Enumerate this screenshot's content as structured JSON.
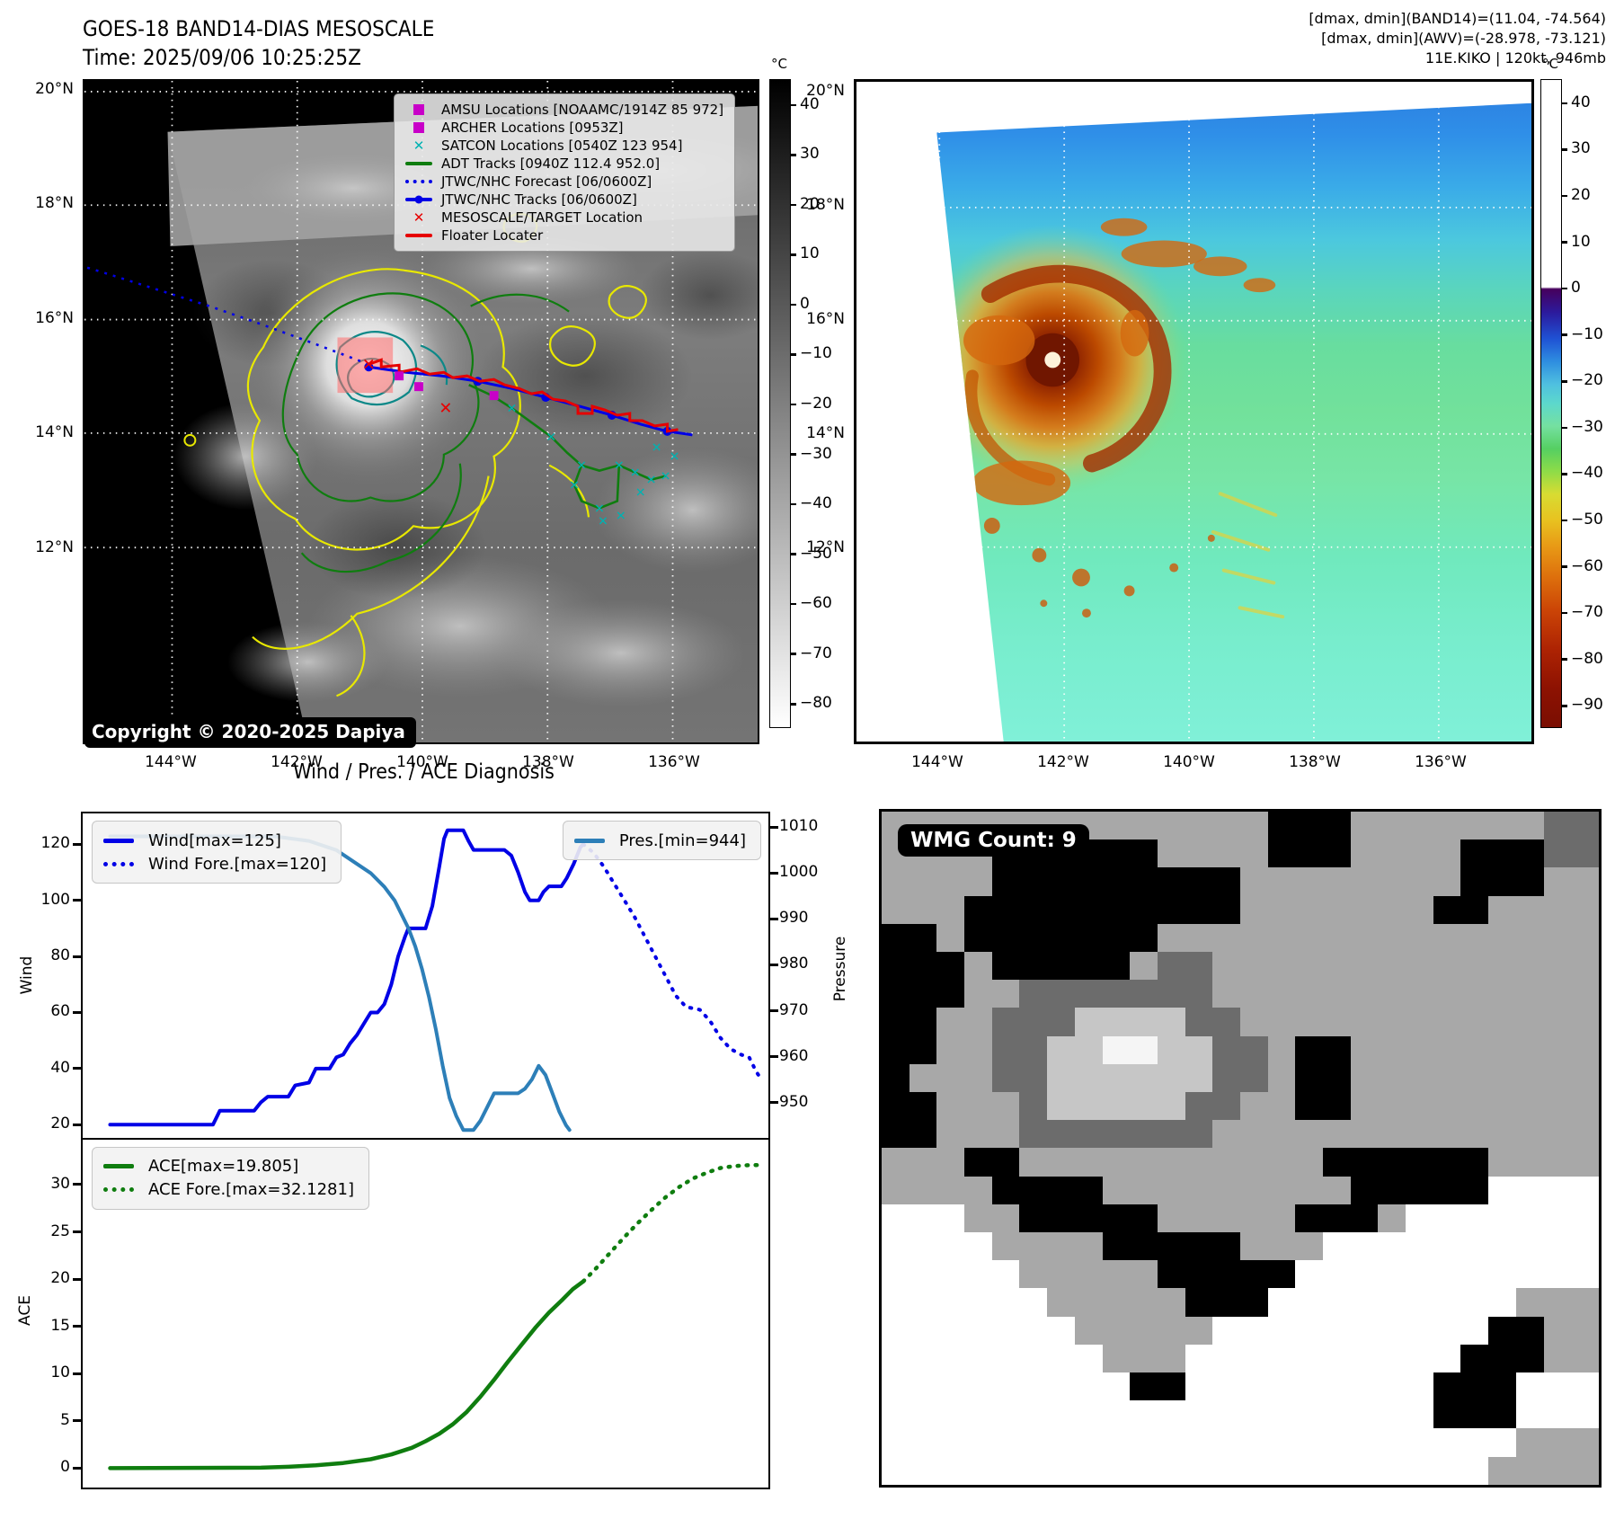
{
  "header": {
    "title_line1": "GOES-18 BAND14-DIAS MESOSCALE",
    "title_line2": "Time: 2025/09/06 10:25:25Z",
    "info_line1": "[dmax, dmin](BAND14)=(11.04, -74.564)",
    "info_line2": "[dmax, dmin](AWV)=(-28.978, -73.121)",
    "info_line3": "11E.KIKO | 120kt, 946mb"
  },
  "left_map": {
    "lat_labels": [
      "20°N",
      "18°N",
      "16°N",
      "14°N",
      "12°N"
    ],
    "lon_labels": [
      "144°W",
      "142°W",
      "140°W",
      "138°W",
      "136°W"
    ],
    "copyright": "Copyright © 2020-2025 Dapiya",
    "legend": [
      {
        "marker": "square",
        "color": "#c800c8",
        "label": "AMSU Locations [NOAAMC/1914Z 85 972]"
      },
      {
        "marker": "square",
        "color": "#c800c8",
        "label": "ARCHER Locations [0953Z]"
      },
      {
        "marker": "x",
        "color": "#00b2b2",
        "label": "SATCON Locations [0540Z 123 954]"
      },
      {
        "marker": "line",
        "color": "#0f7d0f",
        "label": "ADT Tracks [0940Z 112.4 952.0]"
      },
      {
        "marker": "dotted",
        "color": "#0000e6",
        "label": "JTWC/NHC Forecast [06/0600Z]"
      },
      {
        "marker": "line-dot",
        "color": "#0000e6",
        "label": "JTWC/NHC Tracks [06/0600Z]"
      },
      {
        "marker": "x",
        "color": "#e60000",
        "label": "MESOSCALE/TARGET Location"
      },
      {
        "marker": "line",
        "color": "#e60000",
        "label": "Floater Locater"
      }
    ],
    "colorbar": {
      "unit": "°C",
      "ticks": [
        40,
        30,
        20,
        10,
        0,
        -10,
        -20,
        -30,
        -40,
        -50,
        -60,
        -70,
        -80
      ],
      "range": [
        45,
        -85
      ]
    }
  },
  "right_map": {
    "lat_labels": [
      "20°N",
      "18°N",
      "16°N",
      "14°N",
      "12°N"
    ],
    "lon_labels": [
      "144°W",
      "142°W",
      "140°W",
      "138°W",
      "136°W"
    ],
    "colorbar": {
      "unit": "°C",
      "ticks": [
        40,
        30,
        20,
        10,
        0,
        -10,
        -20,
        -30,
        -40,
        -50,
        -60,
        -70,
        -80,
        -90
      ],
      "range": [
        45,
        -95
      ]
    }
  },
  "charts_title": "Wind / Pres. / ACE Diagnosis",
  "chart_data": [
    {
      "panel": "wind",
      "type": "line",
      "title": "Wind / Pres. / ACE Diagnosis",
      "xlabel": "",
      "ylabel_left": "Wind",
      "ylabel_right": "Pressure",
      "x_range": [
        0,
        100
      ],
      "y_left_range": [
        14,
        131
      ],
      "y_left_ticks": [
        20,
        40,
        60,
        80,
        100,
        120
      ],
      "y_right_range": [
        941.5,
        1013
      ],
      "y_right_ticks": [
        950,
        960,
        970,
        980,
        990,
        1000,
        1010
      ],
      "grid": false,
      "series": [
        {
          "name": "Wind[max=125]",
          "axis": "left",
          "color": "#0000e6",
          "dash": "solid",
          "width": 4,
          "points": [
            [
              4,
              20
            ],
            [
              19,
              20
            ],
            [
              20,
              25
            ],
            [
              25,
              25
            ],
            [
              26,
              28
            ],
            [
              27,
              30
            ],
            [
              30,
              30
            ],
            [
              31,
              34
            ],
            [
              33,
              35
            ],
            [
              34,
              40
            ],
            [
              36,
              40
            ],
            [
              37,
              44
            ],
            [
              38,
              45
            ],
            [
              39,
              49
            ],
            [
              40,
              52
            ],
            [
              41,
              56
            ],
            [
              42,
              60
            ],
            [
              43,
              60
            ],
            [
              44,
              63
            ],
            [
              45,
              70
            ],
            [
              46,
              80
            ],
            [
              47,
              87
            ],
            [
              47.5,
              90
            ],
            [
              50,
              90
            ],
            [
              51,
              98
            ],
            [
              52,
              112
            ],
            [
              52.7,
              122
            ],
            [
              53.2,
              125
            ],
            [
              55.5,
              125
            ],
            [
              56.3,
              121
            ],
            [
              57,
              118
            ],
            [
              61.5,
              118
            ],
            [
              62.5,
              116
            ],
            [
              63.5,
              110
            ],
            [
              64.5,
              103
            ],
            [
              65.2,
              100
            ],
            [
              66.5,
              100
            ],
            [
              67.2,
              103
            ],
            [
              68,
              105
            ],
            [
              69.8,
              105
            ],
            [
              70.6,
              108
            ],
            [
              71.6,
              113
            ],
            [
              72.6,
              119
            ],
            [
              73,
              120
            ]
          ]
        },
        {
          "name": "Wind Fore.[max=120]",
          "axis": "left",
          "color": "#0000e6",
          "dash": "dotted",
          "width": 4,
          "points": [
            [
              73,
              120
            ],
            [
              74.5,
              117
            ],
            [
              76,
              112
            ],
            [
              77.5,
              106
            ],
            [
              79,
              100
            ],
            [
              80.5,
              94
            ],
            [
              82,
              87
            ],
            [
              83.5,
              80
            ],
            [
              85,
              73
            ],
            [
              86.5,
              66
            ],
            [
              88,
              62
            ],
            [
              90,
              61
            ],
            [
              91.5,
              57
            ],
            [
              93,
              51
            ],
            [
              94.5,
              47
            ],
            [
              96,
              45
            ],
            [
              97.2,
              44
            ],
            [
              98.2,
              39
            ],
            [
              99,
              36
            ]
          ]
        },
        {
          "name": "Pres.[min=944]",
          "axis": "right",
          "color": "#2d7fb8",
          "dash": "solid",
          "width": 4,
          "points": [
            [
              4,
              1008
            ],
            [
              28,
              1008
            ],
            [
              33,
              1007
            ],
            [
              37,
              1005
            ],
            [
              40,
              1002
            ],
            [
              42,
              1000
            ],
            [
              44,
              997
            ],
            [
              45.5,
              994
            ],
            [
              46.5,
              991
            ],
            [
              47.5,
              988
            ],
            [
              48.5,
              984
            ],
            [
              49.5,
              979
            ],
            [
              50.5,
              973
            ],
            [
              51.5,
              966
            ],
            [
              52.5,
              958
            ],
            [
              53.5,
              951
            ],
            [
              54.5,
              947
            ],
            [
              55.5,
              944
            ],
            [
              57,
              944
            ],
            [
              58,
              946
            ],
            [
              59,
              949
            ],
            [
              60,
              952
            ],
            [
              63.5,
              952
            ],
            [
              64.5,
              953
            ],
            [
              65.5,
              955
            ],
            [
              66.5,
              958
            ],
            [
              67.5,
              956
            ],
            [
              68.5,
              952
            ],
            [
              69.5,
              948
            ],
            [
              70.5,
              945
            ],
            [
              71,
              944
            ]
          ]
        }
      ],
      "legend_boxes": [
        {
          "position": "top-left",
          "series": [
            0,
            1
          ]
        },
        {
          "position": "top-right",
          "series": [
            2
          ]
        }
      ]
    },
    {
      "panel": "ace",
      "type": "line",
      "xlabel": "",
      "ylabel_left": "ACE",
      "x_range": [
        0,
        100
      ],
      "y_left_range": [
        -2,
        34.8
      ],
      "y_left_ticks": [
        0,
        5,
        10,
        15,
        20,
        25,
        30
      ],
      "grid": false,
      "series": [
        {
          "name": "ACE[max=19.805]",
          "axis": "left",
          "color": "#0f7d0f",
          "dash": "solid",
          "width": 4.5,
          "points": [
            [
              4,
              0.05
            ],
            [
              26,
              0.1
            ],
            [
              30,
              0.2
            ],
            [
              34,
              0.35
            ],
            [
              38,
              0.6
            ],
            [
              42,
              1
            ],
            [
              45,
              1.5
            ],
            [
              48,
              2.2
            ],
            [
              50,
              2.9
            ],
            [
              52,
              3.7
            ],
            [
              54,
              4.7
            ],
            [
              56,
              6
            ],
            [
              58,
              7.6
            ],
            [
              60,
              9.4
            ],
            [
              62,
              11.3
            ],
            [
              64,
              13.1
            ],
            [
              66,
              14.9
            ],
            [
              68,
              16.5
            ],
            [
              70,
              17.9
            ],
            [
              71.5,
              19
            ],
            [
              73,
              19.8
            ]
          ]
        },
        {
          "name": "ACE Fore.[max=32.1281]",
          "axis": "left",
          "color": "#0f7d0f",
          "dash": "dotted",
          "width": 4.5,
          "points": [
            [
              73,
              19.8
            ],
            [
              75,
              21.3
            ],
            [
              77,
              22.9
            ],
            [
              79,
              24.5
            ],
            [
              81,
              26
            ],
            [
              83,
              27.4
            ],
            [
              85,
              28.7
            ],
            [
              87,
              29.8
            ],
            [
              89,
              30.7
            ],
            [
              91,
              31.3
            ],
            [
              93,
              31.8
            ],
            [
              95,
              32
            ],
            [
              97,
              32.1
            ],
            [
              99,
              32.13
            ]
          ]
        }
      ],
      "legend_boxes": [
        {
          "position": "top-left",
          "series": [
            0,
            1
          ]
        }
      ]
    }
  ],
  "wmg": {
    "label": "WMG Count: 9",
    "palette": {
      ".": "#a8a8a8",
      "k": "#000000",
      "w": "#ffffff",
      "d": "#6c6c6c",
      "l": "#c6c6c6",
      "e": "#f5f5f5"
    },
    "grid": [
      "..............kkk.......dd",
      "....kkkkkk....kkk....kkkdd",
      "....kkkkkkkkk........kkk..",
      "...kkkkkkkkkk.......kk....",
      "kk.kkkkkkk................",
      "kkk.kkkkk.dd..............",
      "kkk..ddddddd..............",
      "kk..dddlllldd.............",
      "kk..ddlleelldd.kk.........",
      "k...ddlllllldd.kk.........",
      "kk...dllllldd..kk.........",
      "kk...ddddddd..............",
      "...kk...........kkkkkk....",
      "....kkkk.........kkkkkwwww",
      "www..kkkkk.....kkk.wwwwwww",
      "wwww....kkkkk...wwwwwwwwww",
      "wwwww.....kkkkkwwwwwwwwwww",
      "wwwwww.....kkkwwwwwwwww...",
      "wwwwwww.....wwwwwwwwwwkk..",
      "wwwwwwww...wwwwwwwwwwkkk..",
      "wwwwwwwwwkkwwwwwwwwwkkkwww",
      "wwwwwwwwwwwwwwwwwwwwkkkwww",
      "wwwwwwwwwwwwwwwwwwwwwww...",
      "wwwwwwwwwwwwwwwwwwwwww...."
    ]
  }
}
